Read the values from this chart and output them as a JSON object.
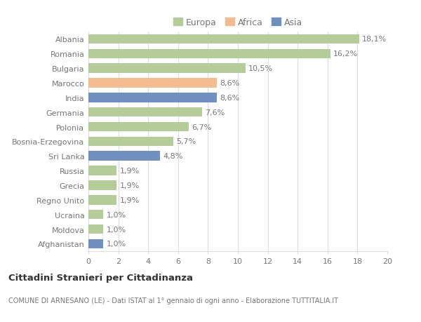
{
  "countries": [
    "Albania",
    "Romania",
    "Bulgaria",
    "Marocco",
    "India",
    "Germania",
    "Polonia",
    "Bosnia-Erzegovina",
    "Sri Lanka",
    "Russia",
    "Grecia",
    "Regno Unito",
    "Ucraina",
    "Moldova",
    "Afghanistan"
  ],
  "values": [
    18.1,
    16.2,
    10.5,
    8.6,
    8.6,
    7.6,
    6.7,
    5.7,
    4.8,
    1.9,
    1.9,
    1.9,
    1.0,
    1.0,
    1.0
  ],
  "labels": [
    "18,1%",
    "16,2%",
    "10,5%",
    "8,6%",
    "8,6%",
    "7,6%",
    "6,7%",
    "5,7%",
    "4,8%",
    "1,9%",
    "1,9%",
    "1,9%",
    "1,0%",
    "1,0%",
    "1,0%"
  ],
  "categories": [
    "Europa",
    "Africa",
    "Asia"
  ],
  "continent": [
    "Europa",
    "Europa",
    "Europa",
    "Africa",
    "Asia",
    "Europa",
    "Europa",
    "Europa",
    "Asia",
    "Europa",
    "Europa",
    "Europa",
    "Europa",
    "Europa",
    "Asia"
  ],
  "colors": {
    "Europa": "#b5cb9a",
    "Africa": "#f2bc90",
    "Asia": "#7090bf"
  },
  "bg_color": "#ffffff",
  "title1": "Cittadini Stranieri per Cittadinanza",
  "title2": "COMUNE DI ARNESANO (LE) - Dati ISTAT al 1° gennaio di ogni anno - Elaborazione TUTTITALIA.IT",
  "xlim": [
    0,
    20
  ],
  "xticks": [
    0,
    2,
    4,
    6,
    8,
    10,
    12,
    14,
    16,
    18,
    20
  ],
  "grid_color": "#dddddd",
  "bar_height": 0.65,
  "label_fontsize": 8.0,
  "tick_fontsize": 8.0,
  "legend_fontsize": 9.0,
  "text_color": "#777777"
}
